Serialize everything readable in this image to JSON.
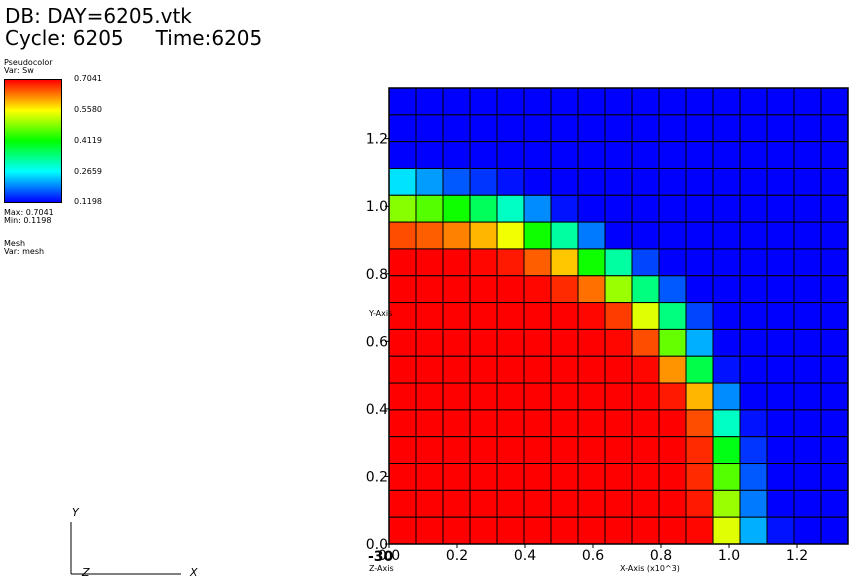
{
  "header": {
    "db_label": "DB: DAY=6205.vtk",
    "cycle_label": "Cycle: 6205",
    "time_label": "Time:6205"
  },
  "legend": {
    "plot_type": "Pseudocolor",
    "variable": "Var: Sw",
    "ticks": [
      "0.7041",
      "0.5580",
      "0.4119",
      "0.2659",
      "0.1198"
    ],
    "max_label": "Max:  0.7041",
    "min_label": "Min:  0.1198",
    "mesh_title": "Mesh",
    "mesh_var": "Var: mesh"
  },
  "axes": {
    "x_title": "X-Axis (x10^3)",
    "y_title": "Y-Axis",
    "z_title": "Z-Axis",
    "x_ticks": [
      "0.0",
      "0.2",
      "0.4",
      "0.6",
      "0.8",
      "1.0",
      "1.2"
    ],
    "y_ticks": [
      "0.0",
      "0.2",
      "0.4",
      "0.6",
      "0.8",
      "1.0",
      "1.2"
    ],
    "z_tick": "-30"
  },
  "triad": {
    "x": "X",
    "y": "Y",
    "z": "Z"
  },
  "colors": {
    "red": "#ff0000",
    "blue": "#0000ff",
    "mesh_line": "#000000"
  },
  "chart_data": {
    "type": "heatmap",
    "x_range": [
      0.0,
      1.35
    ],
    "y_range": [
      0.0,
      1.35
    ],
    "color_range": [
      0.1198,
      0.7041
    ],
    "columns": 17,
    "rows": 17,
    "grid": true,
    "colorbar": "Sw",
    "cells": [
      [
        0.1198,
        0.1198,
        0.1198,
        0.1198,
        0.1198,
        0.1198,
        0.1198,
        0.1198,
        0.1198,
        0.1198,
        0.1198,
        0.1198,
        0.1198,
        0.1198,
        0.1198,
        0.1198,
        0.1198
      ],
      [
        0.1198,
        0.1198,
        0.1198,
        0.1198,
        0.1198,
        0.1198,
        0.1198,
        0.1198,
        0.1198,
        0.1198,
        0.1198,
        0.1198,
        0.1198,
        0.1198,
        0.1198,
        0.1198,
        0.1198
      ],
      [
        0.1198,
        0.1198,
        0.1198,
        0.1198,
        0.1198,
        0.1198,
        0.1198,
        0.1198,
        0.1198,
        0.1198,
        0.1198,
        0.1198,
        0.1198,
        0.1198,
        0.1198,
        0.1198,
        0.1198
      ],
      [
        0.25,
        0.21,
        0.17,
        0.15,
        0.13,
        0.12,
        0.1198,
        0.1198,
        0.1198,
        0.1198,
        0.1198,
        0.1198,
        0.1198,
        0.1198,
        0.1198,
        0.1198,
        0.1198
      ],
      [
        0.49,
        0.46,
        0.42,
        0.36,
        0.3,
        0.2,
        0.13,
        0.1198,
        0.1198,
        0.1198,
        0.1198,
        0.1198,
        0.1198,
        0.1198,
        0.1198,
        0.1198,
        0.1198
      ],
      [
        0.66,
        0.65,
        0.63,
        0.6,
        0.55,
        0.42,
        0.32,
        0.19,
        0.12,
        0.1198,
        0.1198,
        0.1198,
        0.1198,
        0.1198,
        0.1198,
        0.1198,
        0.1198
      ],
      [
        0.7041,
        0.7041,
        0.7041,
        0.7,
        0.69,
        0.65,
        0.59,
        0.42,
        0.32,
        0.16,
        0.1198,
        0.1198,
        0.1198,
        0.1198,
        0.1198,
        0.1198,
        0.1198
      ],
      [
        0.7041,
        0.7041,
        0.7041,
        0.7041,
        0.7041,
        0.7,
        0.68,
        0.64,
        0.5,
        0.34,
        0.17,
        0.1198,
        0.1198,
        0.1198,
        0.1198,
        0.1198,
        0.1198
      ],
      [
        0.7041,
        0.7041,
        0.7041,
        0.7041,
        0.7041,
        0.7041,
        0.7041,
        0.7,
        0.67,
        0.54,
        0.34,
        0.16,
        0.1198,
        0.1198,
        0.1198,
        0.1198,
        0.1198
      ],
      [
        0.7041,
        0.7041,
        0.7041,
        0.7041,
        0.7041,
        0.7041,
        0.7041,
        0.7041,
        0.7,
        0.66,
        0.47,
        0.22,
        0.1198,
        0.1198,
        0.1198,
        0.1198,
        0.1198
      ],
      [
        0.7041,
        0.7041,
        0.7041,
        0.7041,
        0.7041,
        0.7041,
        0.7041,
        0.7041,
        0.7041,
        0.7,
        0.62,
        0.37,
        0.13,
        0.1198,
        0.1198,
        0.1198,
        0.1198
      ],
      [
        0.7041,
        0.7041,
        0.7041,
        0.7041,
        0.7041,
        0.7041,
        0.7041,
        0.7041,
        0.7041,
        0.7041,
        0.69,
        0.6,
        0.2,
        0.1198,
        0.1198,
        0.1198,
        0.1198
      ],
      [
        0.7041,
        0.7041,
        0.7041,
        0.7041,
        0.7041,
        0.7041,
        0.7041,
        0.7041,
        0.7041,
        0.7041,
        0.7041,
        0.66,
        0.3,
        0.13,
        0.1198,
        0.1198,
        0.1198
      ],
      [
        0.7041,
        0.7041,
        0.7041,
        0.7041,
        0.7041,
        0.7041,
        0.7041,
        0.7041,
        0.7041,
        0.7041,
        0.7041,
        0.68,
        0.4,
        0.15,
        0.12,
        0.1198,
        0.1198
      ],
      [
        0.7041,
        0.7041,
        0.7041,
        0.7041,
        0.7041,
        0.7041,
        0.7041,
        0.7041,
        0.7041,
        0.7041,
        0.7041,
        0.68,
        0.46,
        0.17,
        0.12,
        0.1198,
        0.1198
      ],
      [
        0.7041,
        0.7041,
        0.7041,
        0.7041,
        0.7041,
        0.7041,
        0.7041,
        0.7041,
        0.7041,
        0.7041,
        0.7041,
        0.69,
        0.5,
        0.19,
        0.12,
        0.1198,
        0.1198
      ],
      [
        0.7041,
        0.7041,
        0.7041,
        0.7041,
        0.7041,
        0.7041,
        0.7041,
        0.7041,
        0.7041,
        0.7041,
        0.7041,
        0.7,
        0.54,
        0.22,
        0.13,
        0.1198,
        0.1198
      ]
    ]
  }
}
